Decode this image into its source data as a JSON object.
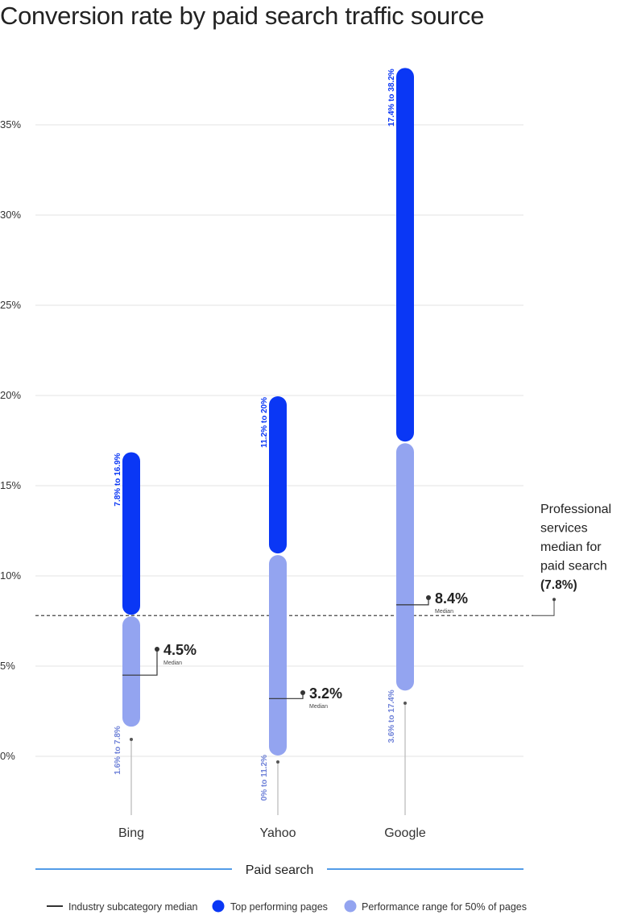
{
  "title": "Conversion rate by paid search traffic source",
  "colors": {
    "top": "#0a37f5",
    "range": "#93a4f0",
    "median_line": "#333333",
    "grid": "#e3e3e3",
    "axis_text": "#333333",
    "accent_line": "#1a7be0"
  },
  "chart_data": {
    "type": "range-bar",
    "title": "Conversion rate by paid search traffic source",
    "xlabel": "Paid search",
    "ylabel": "",
    "ylim": [
      0,
      38.2
    ],
    "yticks": [
      0,
      5,
      10,
      15,
      20,
      25,
      30,
      35
    ],
    "ytick_labels": [
      "0%",
      "5%",
      "10%",
      "15%",
      "20%",
      "25%",
      "30%",
      "35%"
    ],
    "grid": true,
    "categories": [
      "Bing",
      "Yahoo",
      "Google"
    ],
    "series": [
      {
        "name": "Performance range for 50% of pages",
        "ranges": [
          [
            1.6,
            7.8
          ],
          [
            0,
            11.2
          ],
          [
            3.6,
            17.4
          ]
        ],
        "labels": [
          "1.6% to 7.8%",
          "0% to 11.2%",
          "3.6% to 17.4%"
        ]
      },
      {
        "name": "Top performing pages",
        "ranges": [
          [
            7.8,
            16.9
          ],
          [
            11.2,
            20
          ],
          [
            17.4,
            38.2
          ]
        ],
        "labels": [
          "7.8% to 16.9%",
          "11.2% to 20%",
          "17.4% to 38.2%"
        ]
      }
    ],
    "medians": [
      4.5,
      3.2,
      8.4
    ],
    "median_labels": [
      "4.5%",
      "3.2%",
      "8.4%"
    ],
    "median_caption": "Median",
    "industry_median": {
      "value": 7.8,
      "name": "Industry subcategory median",
      "annotation_lines": [
        "Professional",
        "services",
        "median for",
        "paid search"
      ],
      "annotation_value": "(7.8%)"
    },
    "legend": [
      {
        "marker": "line",
        "label": "Industry subcategory median"
      },
      {
        "marker": "dot-top",
        "label": "Top performing pages"
      },
      {
        "marker": "dot-range",
        "label": "Performance range for 50% of pages"
      }
    ],
    "legend_position": "bottom"
  }
}
